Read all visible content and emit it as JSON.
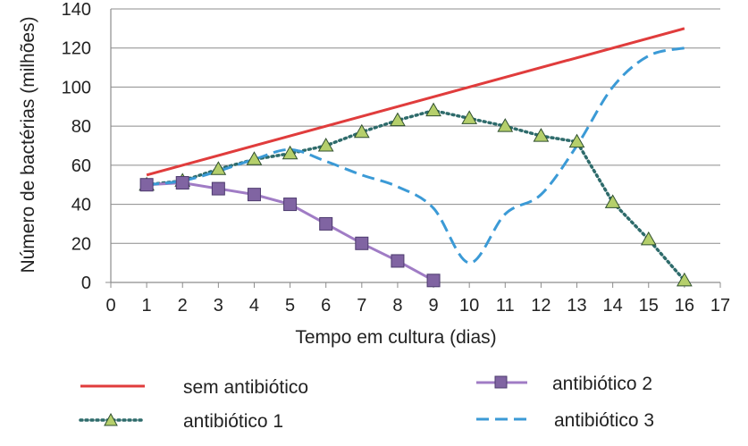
{
  "chart_data": {
    "type": "line",
    "title": "",
    "xlabel": "Tempo em cultura (dias)",
    "ylabel": "Número de bactérias (milhões)",
    "xlim": [
      0,
      17
    ],
    "ylim": [
      0,
      140
    ],
    "xticks": [
      0,
      1,
      2,
      3,
      4,
      5,
      6,
      7,
      8,
      9,
      10,
      11,
      12,
      13,
      14,
      15,
      16,
      17
    ],
    "yticks": [
      0,
      20,
      40,
      60,
      80,
      100,
      120,
      140
    ],
    "grid": "horizontal",
    "legend_position": "bottom",
    "series": [
      {
        "name": "sem antibiótico",
        "color": "#e03c3c",
        "style": "solid",
        "marker": "none",
        "x": [
          1,
          16
        ],
        "y": [
          55,
          130
        ]
      },
      {
        "name": "antibiótico 1",
        "color": "#2e6b6b",
        "style": "dotted",
        "marker": "triangle",
        "marker_color": "#b5cf6b",
        "x": [
          1,
          2,
          3,
          4,
          5,
          6,
          7,
          8,
          9,
          10,
          11,
          12,
          13,
          14,
          15,
          16
        ],
        "y": [
          50,
          52,
          58,
          63,
          66,
          70,
          77,
          83,
          88,
          84,
          80,
          75,
          72,
          41,
          22,
          1
        ]
      },
      {
        "name": "antibiótico 2",
        "color": "#a07cc5",
        "style": "solid",
        "marker": "square",
        "marker_color": "#8064a2",
        "x": [
          1,
          2,
          3,
          4,
          5,
          6,
          7,
          8,
          9
        ],
        "y": [
          50,
          51,
          48,
          45,
          40,
          30,
          20,
          11,
          1
        ]
      },
      {
        "name": "antibiótico 3",
        "color": "#3b9ad6",
        "style": "dashed",
        "marker": "none",
        "smooth": true,
        "x": [
          1,
          2,
          3,
          4,
          5,
          6,
          7,
          8,
          9,
          10,
          11,
          12,
          13,
          14,
          15,
          16
        ],
        "y": [
          50,
          52,
          57,
          63,
          68,
          62,
          55,
          49,
          38,
          10,
          35,
          45,
          70,
          100,
          116,
          120
        ]
      }
    ]
  },
  "legend": {
    "items": [
      {
        "label": "sem antibiótico",
        "series": 0
      },
      {
        "label": "antibiótico 2",
        "series": 2
      },
      {
        "label": "antibiótico 1",
        "series": 1
      },
      {
        "label": "antibiótico 3",
        "series": 3
      }
    ]
  }
}
